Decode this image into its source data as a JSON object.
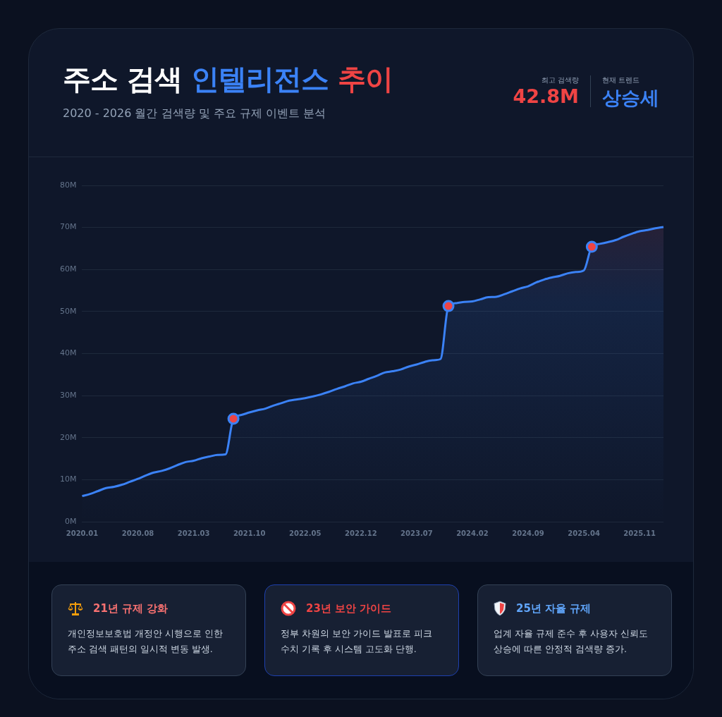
{
  "chart_data": {
    "type": "area",
    "title": "주소 검색 인텔리전스 추이",
    "subtitle": "2020 - 2026 월간 검색량 및 주요 규제 이벤트 분석",
    "categories": [
      "2020.01",
      null,
      null,
      null,
      null,
      null,
      null,
      "2020.08",
      null,
      null,
      null,
      null,
      null,
      null,
      "2021.03",
      null,
      null,
      null,
      null,
      null,
      null,
      "2021.10",
      null,
      null,
      null,
      null,
      null,
      null,
      "2022.05",
      null,
      null,
      null,
      null,
      null,
      null,
      "2022.12",
      null,
      null,
      null,
      null,
      null,
      null,
      "2023.07",
      null,
      null,
      null,
      null,
      null,
      null,
      "2024.02",
      null,
      null,
      null,
      null,
      null,
      null,
      "2024.09",
      null,
      null,
      null,
      null,
      null,
      null,
      "2025.04",
      null,
      null,
      null,
      null,
      null,
      null,
      "2025.11",
      null,
      null,
      null
    ],
    "series": [
      {
        "type": "area",
        "color": "#3b82f6",
        "marker": "none",
        "values": [
          6.1,
          6.6,
          7.3,
          8.0,
          8.3,
          8.8,
          9.5,
          10.2,
          11.0,
          11.7,
          12.1,
          12.7,
          13.5,
          14.2,
          14.5,
          15.1,
          15.5,
          15.9,
          16.0,
          24.5,
          25.4,
          26.0,
          26.5,
          26.9,
          27.6,
          28.2,
          28.8,
          29.1,
          29.4,
          29.8,
          30.3,
          30.9,
          31.6,
          32.2,
          32.9,
          33.3,
          34.0,
          34.7,
          35.5,
          35.8,
          36.2,
          36.9,
          37.4,
          38.0,
          38.4,
          38.7,
          51.3,
          52.0,
          52.3,
          52.4,
          52.9,
          53.4,
          53.5,
          54.1,
          54.8,
          55.5,
          56.0,
          56.9,
          57.6,
          58.1,
          58.5,
          59.1,
          59.4,
          59.8,
          65.4,
          66.1,
          66.5,
          67.0,
          67.8,
          68.5,
          69.1,
          69.4,
          69.8,
          70.1
        ]
      },
      {
        "type": "scatter",
        "color": "#ef4444",
        "marker": "circle",
        "values": [
          null,
          null,
          null,
          null,
          null,
          null,
          null,
          null,
          null,
          null,
          null,
          null,
          null,
          null,
          null,
          null,
          null,
          null,
          null,
          24.5,
          null,
          null,
          null,
          null,
          null,
          null,
          null,
          null,
          null,
          null,
          null,
          null,
          null,
          null,
          null,
          null,
          null,
          null,
          null,
          null,
          null,
          null,
          null,
          null,
          null,
          null,
          51.3,
          null,
          null,
          null,
          null,
          null,
          null,
          null,
          null,
          null,
          null,
          null,
          null,
          null,
          null,
          null,
          null,
          null,
          65.4,
          null,
          null,
          null,
          null,
          null,
          null,
          null,
          null,
          null
        ]
      }
    ],
    "ylim": [
      0,
      80
    ],
    "yticks": [
      {
        "value": 0,
        "label": "0M"
      },
      {
        "value": 10,
        "label": "10M"
      },
      {
        "value": 20,
        "label": "20M"
      },
      {
        "value": 30,
        "label": "30M"
      },
      {
        "value": 40,
        "label": "40M"
      },
      {
        "value": 50,
        "label": "50M"
      },
      {
        "value": 60,
        "label": "60M"
      },
      {
        "value": 70,
        "label": "70M"
      },
      {
        "value": 80,
        "label": "80M"
      }
    ],
    "grid": "y",
    "legend": false,
    "line_style": "solid",
    "annotations": [
      "최고 검색량",
      "42.8M",
      "현재 트렌드",
      "상승세",
      "21년 규제 강화",
      "개인정보보호법 개정안 시행으로 인한 주소 검색 패턴의 일시적 변동 발생.",
      "23년 보안 가이드",
      "정부 차원의 보안 가이드 발표로 피크 수치 기록 후 시스템 고도화 단행.",
      "25년 자율 규제",
      "업계 자율 규제 준수 후 사용자 신뢰도 상승에 따른 안정적 검색량 증가."
    ]
  }
}
